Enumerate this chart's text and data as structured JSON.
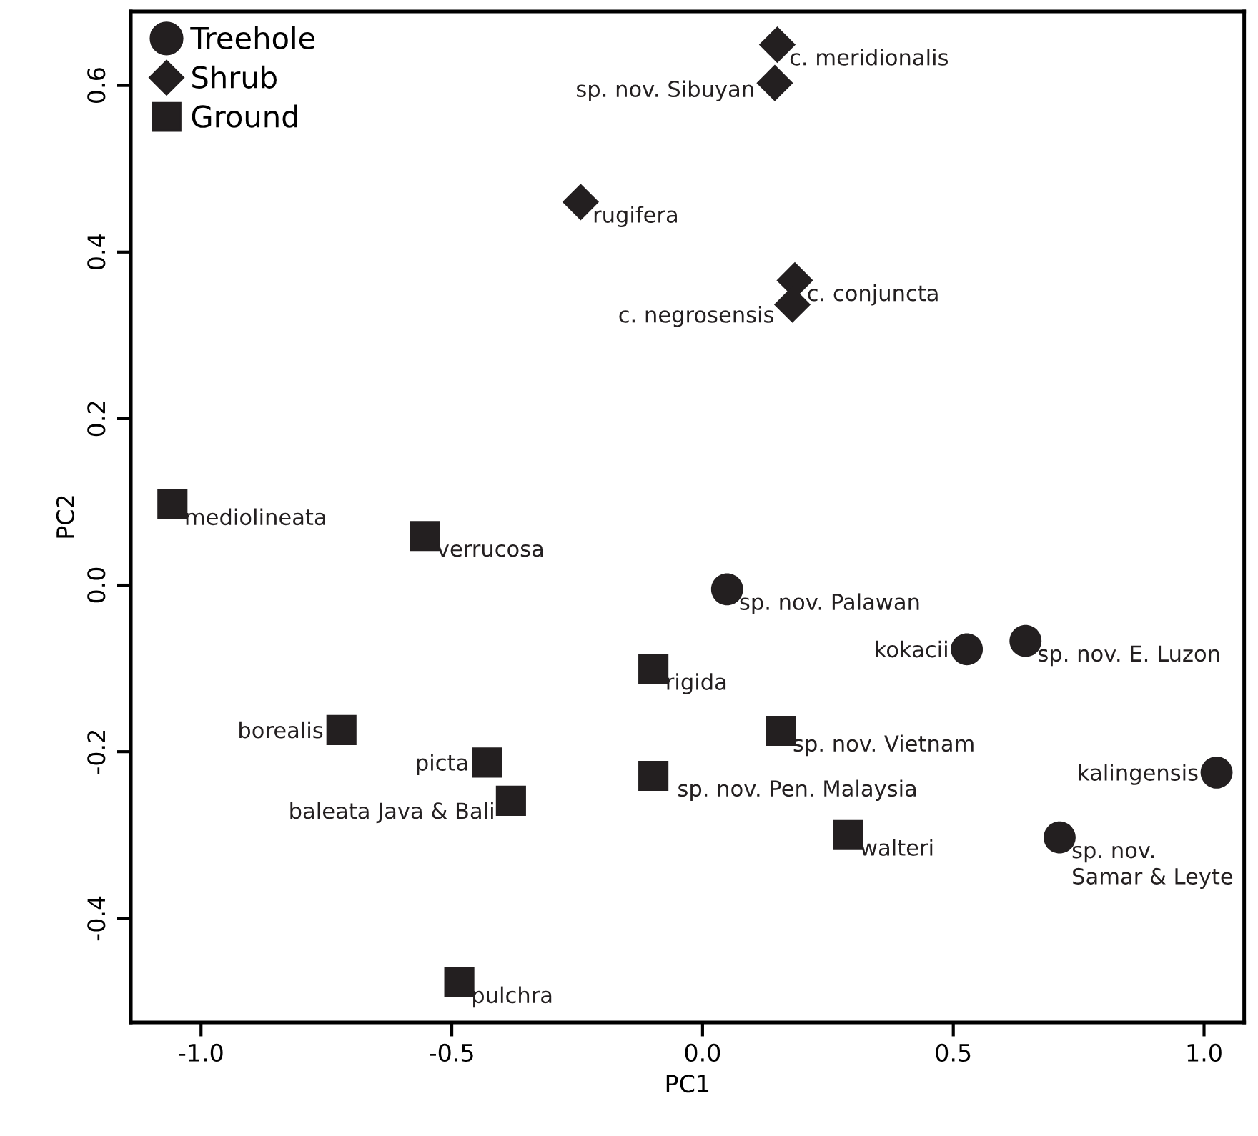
{
  "chart_data": {
    "type": "scatter",
    "xlabel": "PC1",
    "ylabel": "PC2",
    "xlim": [
      -1.14,
      1.08
    ],
    "ylim": [
      -0.525,
      0.689
    ],
    "xticks": [
      {
        "value": -1.0,
        "label": "-1.0"
      },
      {
        "value": -0.5,
        "label": "-0.5"
      },
      {
        "value": 0.0,
        "label": "0.0"
      },
      {
        "value": 0.5,
        "label": "0.5"
      },
      {
        "value": 1.0,
        "label": "1.0"
      }
    ],
    "yticks": [
      {
        "value": -0.4,
        "label": "-0.4"
      },
      {
        "value": -0.2,
        "label": "-0.2"
      },
      {
        "value": 0.0,
        "label": "0.0"
      },
      {
        "value": 0.2,
        "label": "0.2"
      },
      {
        "value": 0.4,
        "label": "0.4"
      },
      {
        "value": 0.6,
        "label": "0.6"
      }
    ],
    "grid": false,
    "legend": "top left",
    "series": [
      {
        "name": "Treehole",
        "color": "#231f20",
        "marker": "circle",
        "x": [
          0.049,
          0.527,
          0.644,
          1.025,
          0.712
        ],
        "values": [
          -0.005,
          -0.077,
          -0.067,
          -0.225,
          -0.303
        ]
      },
      {
        "name": "Shrub",
        "color": "#231f20",
        "marker": "diamond",
        "x": [
          0.149,
          0.144,
          -0.243,
          0.184,
          0.179
        ],
        "values": [
          0.649,
          0.603,
          0.46,
          0.366,
          0.337
        ]
      },
      {
        "name": "Ground",
        "color": "#231f20",
        "marker": "square",
        "x": [
          -1.057,
          -0.554,
          -0.098,
          0.156,
          -0.098,
          0.29,
          -0.72,
          -0.43,
          -0.382,
          -0.485
        ],
        "values": [
          0.097,
          0.059,
          -0.101,
          -0.175,
          -0.229,
          -0.3,
          -0.174,
          -0.213,
          -0.259,
          -0.477
        ]
      }
    ],
    "annotations": [
      {
        "text": "sp. nov. Palawan",
        "x": 0.049,
        "y": -0.005
      },
      {
        "text": "kokacii",
        "x": 0.527,
        "y": -0.077
      },
      {
        "text": "sp. nov. E. Luzon",
        "x": 0.644,
        "y": -0.067
      },
      {
        "text": "kalingensis",
        "x": 1.025,
        "y": -0.225
      },
      {
        "text": "sp. nov.\nSamar & Leyte",
        "x": 0.712,
        "y": -0.303
      },
      {
        "text": "c. meridionalis",
        "x": 0.149,
        "y": 0.649
      },
      {
        "text": "sp. nov. Sibuyan",
        "x": 0.144,
        "y": 0.603
      },
      {
        "text": "rugifera",
        "x": -0.243,
        "y": 0.46
      },
      {
        "text": "c. conjuncta",
        "x": 0.184,
        "y": 0.366
      },
      {
        "text": "c. negrosensis",
        "x": 0.179,
        "y": 0.337
      },
      {
        "text": "mediolineata",
        "x": -1.057,
        "y": 0.097
      },
      {
        "text": "verrucosa",
        "x": -0.554,
        "y": 0.059
      },
      {
        "text": "rigida",
        "x": -0.098,
        "y": -0.101
      },
      {
        "text": "sp. nov. Vietnam",
        "x": 0.156,
        "y": -0.175
      },
      {
        "text": "sp. nov. Pen. Malaysia",
        "x": -0.098,
        "y": -0.229
      },
      {
        "text": "walteri",
        "x": 0.29,
        "y": -0.3
      },
      {
        "text": "borealis",
        "x": -0.72,
        "y": -0.174
      },
      {
        "text": "picta",
        "x": -0.43,
        "y": -0.213
      },
      {
        "text": "baleata Java & Bali",
        "x": -0.382,
        "y": -0.259
      },
      {
        "text": "pulchra",
        "x": -0.485,
        "y": -0.477
      }
    ]
  }
}
